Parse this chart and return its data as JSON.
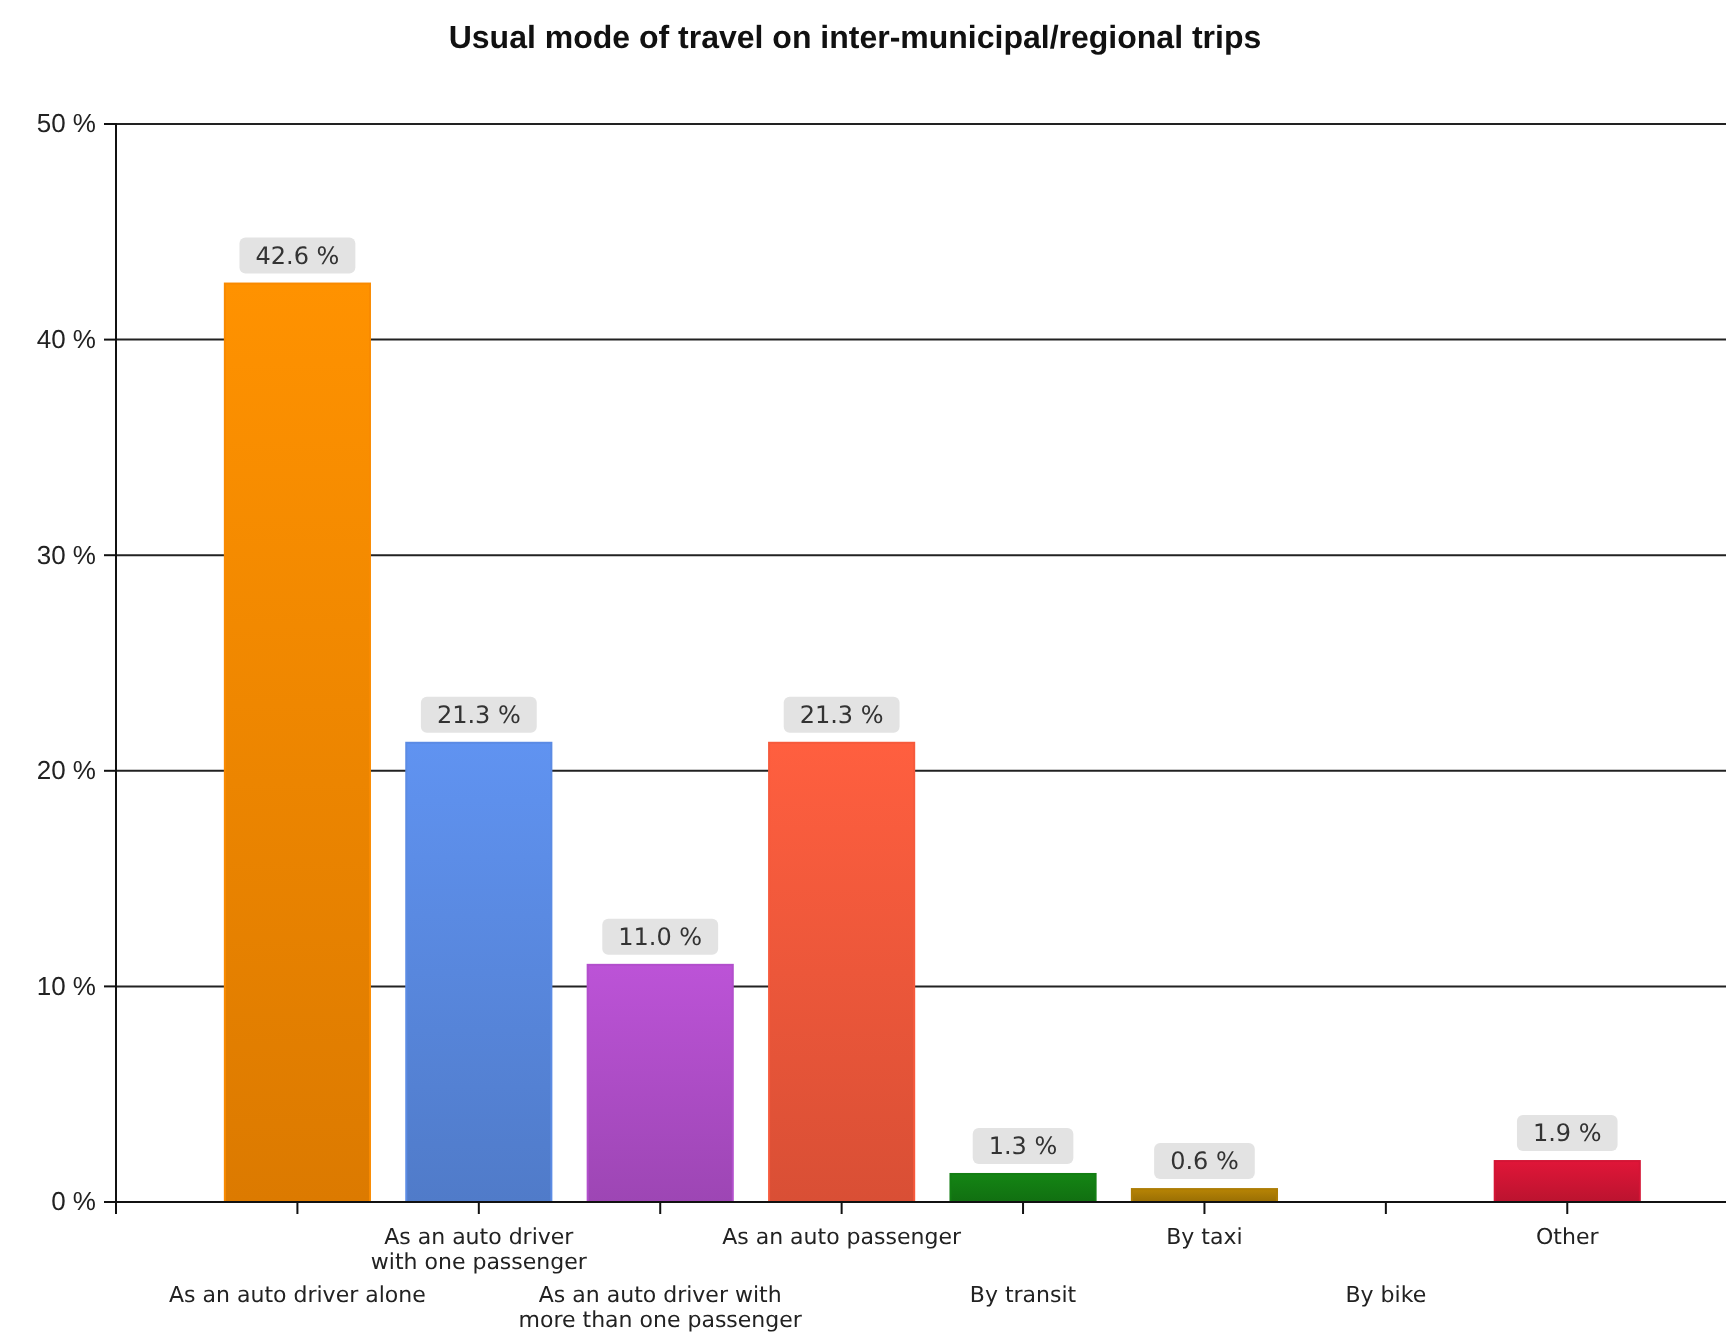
{
  "chart_data": {
    "type": "bar",
    "title": "Usual mode of travel on inter-municipal/regional trips",
    "categories": [
      "As an auto driver alone",
      "As an auto driver with one passenger",
      "As an auto driver with more than one passenger",
      "As an auto passenger",
      "By transit",
      "By taxi",
      "By bike",
      "Other"
    ],
    "values": [
      42.6,
      21.3,
      11.0,
      21.3,
      1.3,
      0.6,
      null,
      1.9
    ],
    "value_labels": [
      "42.6 %",
      "21.3 %",
      "11.0 %",
      "21.3 %",
      "1.3 %",
      "0.6 %",
      null,
      "1.9 %"
    ],
    "colors": [
      "#f98a00",
      "#5b8be4",
      "#b24fcc",
      "#f65a3c",
      "#137e13",
      "#ad7d05",
      null,
      "#d41535"
    ],
    "ylim": [
      0,
      50
    ],
    "yticks": [
      {
        "value": 0,
        "label": "0 %"
      },
      {
        "value": 10,
        "label": "10 %"
      },
      {
        "value": 20,
        "label": "20 %"
      },
      {
        "value": 30,
        "label": "30 %"
      },
      {
        "value": 40,
        "label": "40 %"
      },
      {
        "value": 50,
        "label": "50 %"
      }
    ],
    "grid": "y"
  }
}
